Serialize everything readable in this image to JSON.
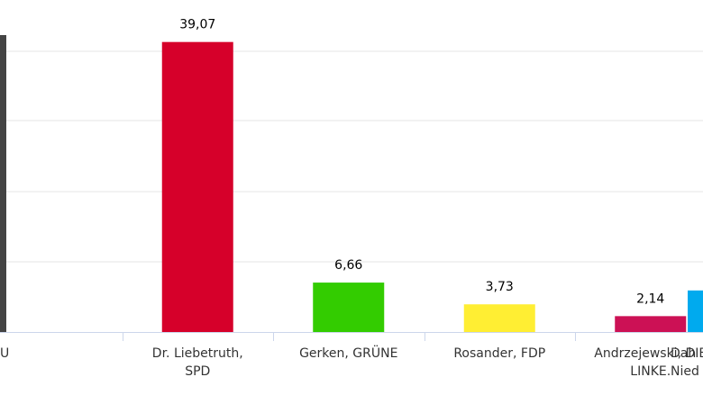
{
  "chart_data": {
    "type": "bar",
    "categories": [
      [
        "U"
      ],
      [
        "Dr. Liebetruth,",
        "SPD"
      ],
      [
        "Gerken, GRÜNE"
      ],
      [
        "Rosander, FDP"
      ],
      [
        "Andrzejewski, DIE",
        "LINKE."
      ],
      [
        "Dah",
        "Nied"
      ]
    ],
    "values": [
      null,
      39.07,
      6.66,
      3.73,
      2.14,
      5.6
    ],
    "value_labels": [
      "",
      "39,07",
      "6,66",
      "3,73",
      "2,14",
      ""
    ],
    "colors": [
      "#444444",
      "#d6002a",
      "#33cc00",
      "#ffee33",
      "#cc1155",
      "#00aaee"
    ],
    "ylim": [
      0,
      40
    ],
    "grid": true
  }
}
